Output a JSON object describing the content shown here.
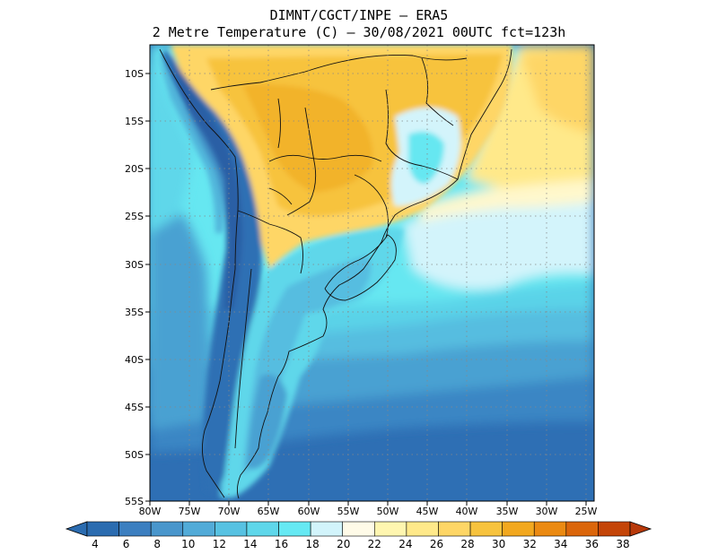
{
  "title": {
    "line1": "DIMNT/CGCT/INPE –  ERA5",
    "line2": "2 Metre Temperature (C) –  30/08/2021 00UTC fct=123h"
  },
  "map": {
    "lat_ticks": [
      "10S",
      "15S",
      "20S",
      "25S",
      "30S",
      "35S",
      "40S",
      "45S",
      "50S",
      "55S"
    ],
    "lon_ticks": [
      "80W",
      "75W",
      "70W",
      "65W",
      "60W",
      "55W",
      "50W",
      "45W",
      "40W",
      "35W",
      "30W",
      "25W"
    ],
    "lat_range": [
      -55,
      -7.5
    ],
    "lon_range": [
      -80,
      -24
    ],
    "grid": true
  },
  "colorbar": {
    "labels": [
      "4",
      "6",
      "8",
      "10",
      "12",
      "14",
      "16",
      "18",
      "20",
      "22",
      "24",
      "26",
      "28",
      "30",
      "32",
      "34",
      "36",
      "38"
    ],
    "colors": [
      "#2b6cb0",
      "#3c7fc0",
      "#4996cc",
      "#52abd8",
      "#57c2e2",
      "#5fd7ea",
      "#66e9f3",
      "#d2f4fb",
      "#fffbe8",
      "#fff6b0",
      "#ffe98a",
      "#fed666",
      "#f7c33e",
      "#f2a81f",
      "#eb8a12",
      "#db660b",
      "#c44508"
    ]
  }
}
